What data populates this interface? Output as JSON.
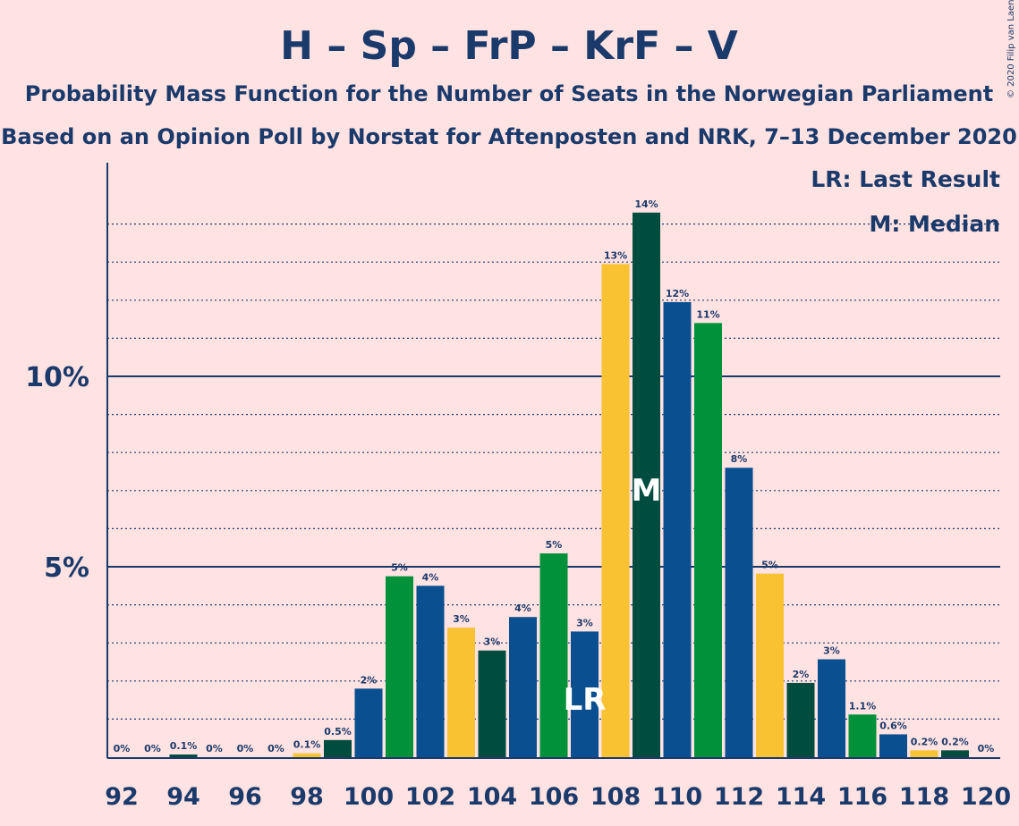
{
  "chart_data": {
    "type": "bar",
    "title": "H – Sp – FrP – KrF – V",
    "subtitle1": "Probability Mass Function for the Number of Seats in the Norwegian Parliament",
    "subtitle2": "Based on an Opinion Poll by Norstat for Aftenposten and NRK, 7–13 December 2020",
    "copyright": "© 2020 Filip van Laenen",
    "legend_lr": "LR: Last Result",
    "legend_m": "M: Median",
    "lr_marker": "LR",
    "median_marker": "M",
    "last_result_seat": 107,
    "median_seat": 109,
    "y_ticks": [
      {
        "value": 5,
        "label": "5%"
      },
      {
        "value": 10,
        "label": "10%"
      }
    ],
    "ylim": [
      0,
      15.5
    ],
    "x_ticks": [
      92,
      94,
      96,
      98,
      100,
      102,
      104,
      106,
      108,
      110,
      112,
      114,
      116,
      118,
      120
    ],
    "bars": [
      {
        "seat": 92,
        "value": 0.0,
        "label": "0%"
      },
      {
        "seat": 93,
        "value": 0.0,
        "label": "0%"
      },
      {
        "seat": 94,
        "value": 0.07,
        "label": "0.1%"
      },
      {
        "seat": 95,
        "value": 0.0,
        "label": "0%"
      },
      {
        "seat": 96,
        "value": 0.0,
        "label": "0%"
      },
      {
        "seat": 97,
        "value": 0.0,
        "label": "0%"
      },
      {
        "seat": 98,
        "value": 0.1,
        "label": "0.1%"
      },
      {
        "seat": 99,
        "value": 0.45,
        "label": "0.5%"
      },
      {
        "seat": 100,
        "value": 1.8,
        "label": "2%"
      },
      {
        "seat": 101,
        "value": 4.75,
        "label": "5%"
      },
      {
        "seat": 102,
        "value": 4.5,
        "label": "4%"
      },
      {
        "seat": 103,
        "value": 3.4,
        "label": "3%"
      },
      {
        "seat": 104,
        "value": 2.8,
        "label": "3%"
      },
      {
        "seat": 105,
        "value": 3.68,
        "label": "4%"
      },
      {
        "seat": 106,
        "value": 5.35,
        "label": "5%"
      },
      {
        "seat": 107,
        "value": 3.3,
        "label": "3%"
      },
      {
        "seat": 108,
        "value": 12.95,
        "label": "13%"
      },
      {
        "seat": 109,
        "value": 14.3,
        "label": "14%"
      },
      {
        "seat": 110,
        "value": 11.95,
        "label": "12%"
      },
      {
        "seat": 111,
        "value": 11.4,
        "label": "11%"
      },
      {
        "seat": 112,
        "value": 7.6,
        "label": "8%"
      },
      {
        "seat": 113,
        "value": 4.82,
        "label": "5%"
      },
      {
        "seat": 114,
        "value": 1.95,
        "label": "2%"
      },
      {
        "seat": 115,
        "value": 2.57,
        "label": "3%"
      },
      {
        "seat": 116,
        "value": 1.12,
        "label": "1.1%"
      },
      {
        "seat": 117,
        "value": 0.6,
        "label": "0.6%"
      },
      {
        "seat": 118,
        "value": 0.18,
        "label": "0.2%"
      },
      {
        "seat": 119,
        "value": 0.18,
        "label": "0.2%"
      },
      {
        "seat": 120,
        "value": 0.0,
        "label": "0%"
      }
    ],
    "colors": [
      "#0a4f8f",
      "#f9c233",
      "#004d3f",
      "#0a4f8f",
      "#00913a"
    ]
  }
}
